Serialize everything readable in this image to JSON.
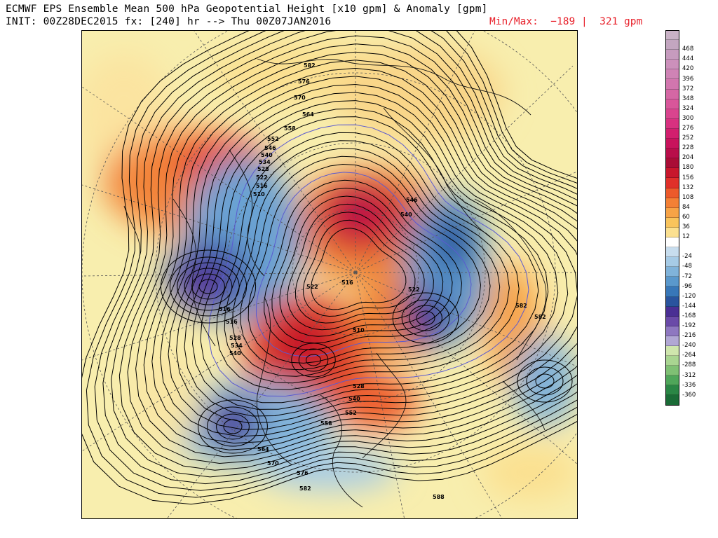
{
  "header": {
    "title_line1": "ECMWF EPS Ensemble Mean 500 hPa Geopotential Height [x10 gpm] & Anomaly [gpm]",
    "title_line2": "INIT: 00Z28DEC2015 fx: [240] hr --> Thu 00Z07JAN2016",
    "minmax": "Min/Max:  −189 |  321 gpm",
    "minmax_color": "#e8202a"
  },
  "colorbar": {
    "levels": [
      {
        "label": "",
        "color": "#c9b2c6"
      },
      {
        "label": "468",
        "color": "#c3a6c0"
      },
      {
        "label": "444",
        "color": "#c69bbe"
      },
      {
        "label": "420",
        "color": "#cc90bb"
      },
      {
        "label": "396",
        "color": "#cf83b5"
      },
      {
        "label": "372",
        "color": "#d276ae"
      },
      {
        "label": "348",
        "color": "#d567a4"
      },
      {
        "label": "324",
        "color": "#d8569a"
      },
      {
        "label": "300",
        "color": "#d9448e"
      },
      {
        "label": "276",
        "color": "#d83180"
      },
      {
        "label": "252",
        "color": "#d21f6e"
      },
      {
        "label": "228",
        "color": "#c8135c"
      },
      {
        "label": "204",
        "color": "#b80e4a"
      },
      {
        "label": "180",
        "color": "#a90d36"
      },
      {
        "label": "156",
        "color": "#c8172c"
      },
      {
        "label": "132",
        "color": "#e0302a"
      },
      {
        "label": "108",
        "color": "#ec5a2b"
      },
      {
        "label": "84",
        "color": "#f38035"
      },
      {
        "label": "60",
        "color": "#f7a346"
      },
      {
        "label": "36",
        "color": "#f9c45c"
      },
      {
        "label": "12",
        "color": "#fbe090"
      },
      {
        "label": "",
        "color": "#ffffff"
      },
      {
        "label": "-24",
        "color": "#c7ddee"
      },
      {
        "label": "-48",
        "color": "#a6cbe6"
      },
      {
        "label": "-72",
        "color": "#80b3da"
      },
      {
        "label": "-96",
        "color": "#5a98cc"
      },
      {
        "label": "-120",
        "color": "#3877b8"
      },
      {
        "label": "-144",
        "color": "#2a549e"
      },
      {
        "label": "-168",
        "color": "#4a2f94"
      },
      {
        "label": "-192",
        "color": "#6a4aa8"
      },
      {
        "label": "-216",
        "color": "#8e77c0"
      },
      {
        "label": "-240",
        "color": "#b1a7d4"
      },
      {
        "label": "-264",
        "color": "#cfe6ad"
      },
      {
        "label": "-288",
        "color": "#a9d591"
      },
      {
        "label": "-312",
        "color": "#7fc074"
      },
      {
        "label": "-336",
        "color": "#4fa65a"
      },
      {
        "label": "-360",
        "color": "#2a8645"
      },
      {
        "label": "",
        "color": "#1a6b36"
      }
    ]
  },
  "map": {
    "contour_labels": [
      {
        "v": "582"
      },
      {
        "v": "576"
      },
      {
        "v": "570"
      },
      {
        "v": "564"
      },
      {
        "v": "558"
      },
      {
        "v": "552"
      },
      {
        "v": "546"
      },
      {
        "v": "540"
      },
      {
        "v": "534"
      },
      {
        "v": "528"
      },
      {
        "v": "522"
      },
      {
        "v": "516"
      },
      {
        "v": "510"
      },
      {
        "v": "546"
      },
      {
        "v": "540"
      },
      {
        "v": "522"
      },
      {
        "v": "516"
      },
      {
        "v": "522"
      },
      {
        "v": "516"
      },
      {
        "v": "516"
      },
      {
        "v": "528"
      },
      {
        "v": "534"
      },
      {
        "v": "540"
      },
      {
        "v": "510"
      },
      {
        "v": "528"
      },
      {
        "v": "540"
      },
      {
        "v": "552"
      },
      {
        "v": "558"
      },
      {
        "v": "564"
      },
      {
        "v": "570"
      },
      {
        "v": "576"
      },
      {
        "v": "582"
      },
      {
        "v": "582"
      },
      {
        "v": "582"
      },
      {
        "v": "588"
      }
    ]
  }
}
